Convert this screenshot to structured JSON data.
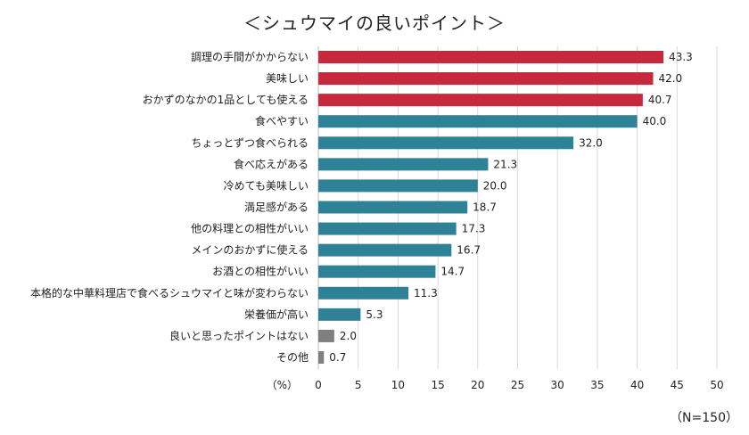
{
  "chart_data": {
    "type": "bar",
    "orientation": "horizontal",
    "title": "＜シュウマイの良いポイント＞",
    "categories": [
      "調理の手間がかからない",
      "美味しい",
      "おかずのなかの1品としても使える",
      "食べやすい",
      "ちょっとずつ食べられる",
      "食べ応えがある",
      "冷めても美味しい",
      "満足感がある",
      "他の料理との相性がいい",
      "メインのおかずに使える",
      "お酒との相性がいい",
      "本格的な中華料理店で食べるシュウマイと味が変わらない",
      "栄養価が高い",
      "良いと思ったポイントはない",
      "その他"
    ],
    "values": [
      43.3,
      42.0,
      40.7,
      40.0,
      32.0,
      21.3,
      20.0,
      18.7,
      17.3,
      16.7,
      14.7,
      11.3,
      5.3,
      2.0,
      0.7
    ],
    "value_labels": [
      "43.3",
      "42.0",
      "40.7",
      "40.0",
      "32.0",
      "21.3",
      "20.0",
      "18.7",
      "17.3",
      "16.7",
      "14.7",
      "11.3",
      "5.3",
      "2.0",
      "0.7"
    ],
    "bar_colors": [
      "#c8283c",
      "#c8283c",
      "#c8283c",
      "#2e8298",
      "#2e8298",
      "#2e8298",
      "#2e8298",
      "#2e8298",
      "#2e8298",
      "#2e8298",
      "#2e8298",
      "#2e8298",
      "#2e8298",
      "#7f7f7f",
      "#7f7f7f"
    ],
    "xlim": [
      0,
      50
    ],
    "xticks": [
      0,
      5,
      10,
      15,
      20,
      25,
      30,
      35,
      40,
      45,
      50
    ],
    "xunit_label": "（%）",
    "grid": true,
    "sample_note": "（N=150）"
  }
}
